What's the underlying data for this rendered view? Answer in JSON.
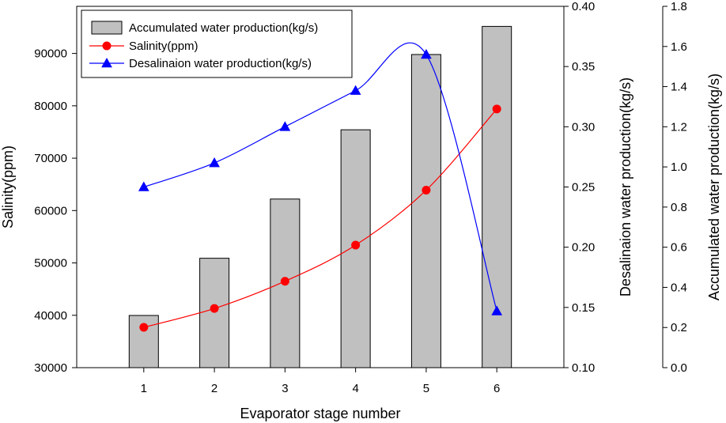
{
  "chart_data": {
    "type": "bar+line",
    "x": [
      1,
      2,
      3,
      4,
      5,
      6
    ],
    "xlabel": "Evaporator stage number",
    "xlim": [
      0.05,
      6.95
    ],
    "x_ticks": [
      "1",
      "2",
      "3",
      "4",
      "5",
      "6"
    ],
    "series": [
      {
        "name": "Accumulated water production(kg/s)",
        "type": "bar",
        "axis": "y3",
        "values": [
          0.26,
          0.545,
          0.84,
          1.185,
          1.56,
          1.7
        ],
        "color": "#c0c0c0"
      },
      {
        "name": "Salinity(ppm)",
        "type": "line",
        "marker": "circle",
        "axis": "y1",
        "values": [
          37700,
          41300,
          46500,
          53400,
          63900,
          79400
        ],
        "color": "#ff0000"
      },
      {
        "name": "Desalinaion water production(kg/s)",
        "type": "line",
        "marker": "triangle",
        "axis": "y2",
        "values": [
          0.25,
          0.27,
          0.3,
          0.33,
          0.36,
          0.147
        ],
        "color": "#0000ff"
      }
    ],
    "y1": {
      "label": "Salinity(ppm)",
      "lim": [
        30000,
        99000
      ],
      "ticks": [
        30000,
        40000,
        50000,
        60000,
        70000,
        80000,
        90000
      ],
      "tick_labels": [
        "30000",
        "40000",
        "50000",
        "60000",
        "70000",
        "80000",
        "90000"
      ]
    },
    "y2": {
      "label": "Desalinaion water production(kg/s)",
      "lim": [
        0.1,
        0.4
      ],
      "ticks": [
        0.1,
        0.15,
        0.2,
        0.25,
        0.3,
        0.35,
        0.4
      ],
      "tick_labels": [
        "0.10",
        "0.15",
        "0.20",
        "0.25",
        "0.30",
        "0.35",
        "0.40"
      ]
    },
    "y3": {
      "label": "Accumulated water production(kg/s)",
      "lim": [
        0,
        1.8
      ],
      "ticks": [
        0,
        0.2,
        0.4,
        0.6,
        0.8,
        1.0,
        1.2,
        1.4,
        1.6,
        1.8
      ],
      "tick_labels": [
        "0.0",
        "0.2",
        "0.4",
        "0.6",
        "0.8",
        "1.0",
        "1.2",
        "1.4",
        "1.6",
        "1.8"
      ]
    },
    "legend": {
      "placement": "top-left",
      "entries": [
        "Accumulated water production(kg/s)",
        "Salinity(ppm)",
        "Desalinaion water production(kg/s)"
      ]
    },
    "grid": false
  }
}
